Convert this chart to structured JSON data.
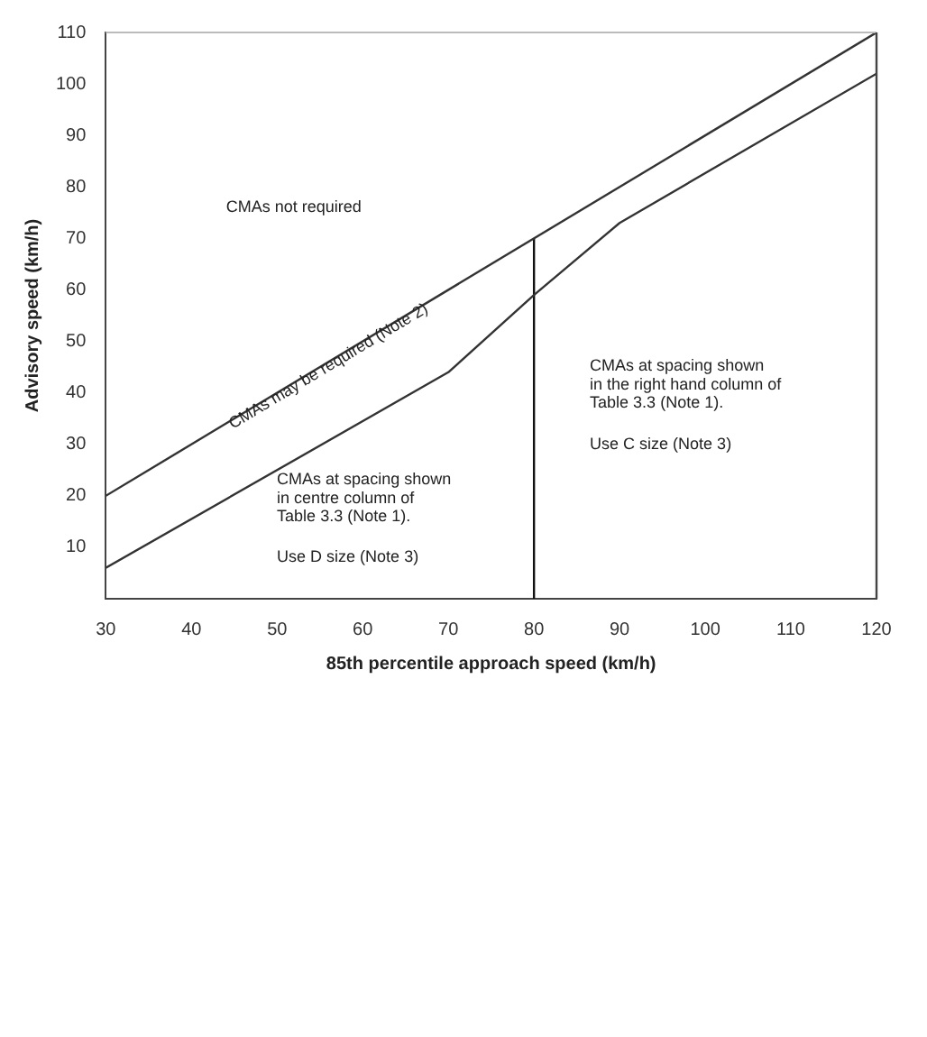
{
  "chart_data": {
    "type": "line",
    "xlabel": "85th percentile approach speed (km/h)",
    "ylabel": "Advisory speed (km/h)",
    "xlim": [
      30,
      120
    ],
    "xticks": [
      30,
      40,
      50,
      60,
      70,
      80,
      90,
      100,
      110,
      120
    ],
    "ylim": [
      0,
      110
    ],
    "yticks": [
      10,
      20,
      30,
      40,
      50,
      60,
      70,
      80,
      90,
      100,
      110
    ],
    "grid": false,
    "legend": false,
    "marker": "none",
    "line_style": "solid",
    "series": [
      {
        "color": "#333333",
        "x": [
          30,
          120
        ],
        "values": [
          20,
          110
        ]
      },
      {
        "color": "#333333",
        "x": [
          30,
          70,
          80,
          90,
          120
        ],
        "values": [
          6,
          44,
          59,
          73,
          102
        ]
      },
      {
        "color": "#111111",
        "x": [
          80,
          80
        ],
        "values": [
          0,
          70
        ]
      }
    ],
    "annotations": [
      "CMAs not required",
      "CMAs may be required (Note 2)",
      "CMAs at spacing shown",
      "in centre column of",
      "Table 3.3 (Note 1).",
      "Use D size (Note 3)",
      "CMAs at spacing shown",
      "in the right hand column of",
      "Table 3.3 (Note 1).",
      "Use C size (Note 3)"
    ]
  }
}
